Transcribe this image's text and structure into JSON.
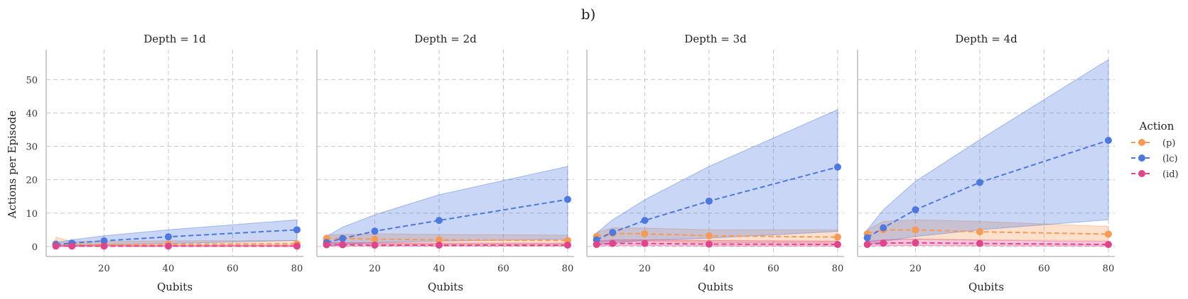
{
  "chart_data": {
    "type": "line",
    "title": "b)",
    "xlabel": "Qubits",
    "ylabel": "Actions per Episode",
    "xlim": [
      2,
      82
    ],
    "ylim": [
      -3,
      59
    ],
    "xticks": [
      20,
      40,
      60,
      80
    ],
    "yticks": [
      0,
      10,
      20,
      30,
      40,
      50
    ],
    "grid": true,
    "legend": {
      "title": "Action",
      "position": "right",
      "entries": [
        {
          "label": "(p)",
          "color": "#f79a55"
        },
        {
          "label": "(lc)",
          "color": "#4c78e0"
        },
        {
          "label": "(id)",
          "color": "#e0458c"
        }
      ]
    },
    "panels": [
      {
        "title": "Depth = 1d",
        "x": [
          5,
          10,
          20,
          40,
          80
        ],
        "series": [
          {
            "name": "(p)",
            "color": "#f79a55",
            "values": [
              0.8,
              0.6,
              0.6,
              0.7,
              0.8
            ],
            "lower": [
              0.2,
              0.1,
              0.2,
              0.1,
              0.1
            ],
            "upper": [
              2.8,
              1.5,
              1.5,
              1.7,
              1.8
            ]
          },
          {
            "name": "(lc)",
            "color": "#4c78e0",
            "values": [
              0.6,
              1.0,
              1.7,
              2.9,
              5.0
            ],
            "lower": [
              0.1,
              0.2,
              0.5,
              0.9,
              1.8
            ],
            "upper": [
              1.2,
              2.0,
              3.2,
              5.0,
              8.0
            ]
          },
          {
            "name": "(id)",
            "color": "#e0458c",
            "values": [
              0.1,
              0.1,
              0.1,
              0.1,
              0.1
            ],
            "lower": [
              0.0,
              0.0,
              0.0,
              0.0,
              0.0
            ],
            "upper": [
              0.4,
              0.4,
              0.4,
              0.4,
              0.4
            ]
          }
        ]
      },
      {
        "title": "Depth = 2d",
        "x": [
          5,
          10,
          20,
          40,
          80
        ],
        "series": [
          {
            "name": "(p)",
            "color": "#f79a55",
            "values": [
              2.4,
              2.4,
              2.2,
              2.0,
              1.8
            ],
            "lower": [
              0.8,
              0.9,
              0.8,
              0.6,
              0.5
            ],
            "upper": [
              3.5,
              3.6,
              3.8,
              3.6,
              3.4
            ]
          },
          {
            "name": "(lc)",
            "color": "#4c78e0",
            "values": [
              1.2,
              2.4,
              4.6,
              7.8,
              14.1
            ],
            "lower": [
              0.2,
              0.5,
              1.2,
              1.6,
              2.2
            ],
            "upper": [
              3.0,
              5.8,
              9.5,
              15.5,
              24.0
            ]
          },
          {
            "name": "(id)",
            "color": "#e0458c",
            "values": [
              0.5,
              0.5,
              0.4,
              0.4,
              0.4
            ],
            "lower": [
              0.1,
              0.1,
              0.1,
              0.1,
              0.1
            ],
            "upper": [
              1.2,
              1.2,
              1.1,
              1.0,
              1.0
            ]
          }
        ]
      },
      {
        "title": "Depth = 3d",
        "x": [
          5,
          10,
          20,
          40,
          80
        ],
        "series": [
          {
            "name": "(p)",
            "color": "#f79a55",
            "values": [
              3.0,
              3.9,
              3.8,
              3.2,
              2.8
            ],
            "lower": [
              1.2,
              1.6,
              1.6,
              1.2,
              1.0
            ],
            "upper": [
              4.2,
              5.6,
              5.5,
              5.0,
              5.0
            ]
          },
          {
            "name": "(lc)",
            "color": "#4c78e0",
            "values": [
              2.0,
              4.2,
              7.8,
              13.6,
              23.8
            ],
            "lower": [
              0.5,
              1.0,
              1.8,
              2.5,
              4.5
            ],
            "upper": [
              4.0,
              8.0,
              14.0,
              24.0,
              41.0
            ]
          },
          {
            "name": "(id)",
            "color": "#e0458c",
            "values": [
              0.6,
              0.9,
              0.9,
              0.7,
              0.6
            ],
            "lower": [
              0.1,
              0.2,
              0.2,
              0.1,
              0.1
            ],
            "upper": [
              1.6,
              2.0,
              2.0,
              1.8,
              1.6
            ]
          }
        ]
      },
      {
        "title": "Depth = 4d",
        "x": [
          5,
          10,
          20,
          40,
          80
        ],
        "series": [
          {
            "name": "(p)",
            "color": "#f79a55",
            "values": [
              3.8,
              5.0,
              5.0,
              4.4,
              3.7
            ],
            "lower": [
              1.2,
              2.0,
              2.2,
              2.0,
              1.8
            ],
            "upper": [
              5.0,
              7.5,
              8.0,
              7.5,
              6.0
            ]
          },
          {
            "name": "(lc)",
            "color": "#4c78e0",
            "values": [
              2.6,
              5.6,
              11.0,
              19.2,
              31.8
            ],
            "lower": [
              0.5,
              1.5,
              3.0,
              5.0,
              8.0
            ],
            "upper": [
              5.0,
              11.0,
              19.5,
              32.0,
              56.0
            ]
          },
          {
            "name": "(id)",
            "color": "#e0458c",
            "values": [
              0.6,
              1.0,
              1.1,
              0.9,
              0.6
            ],
            "lower": [
              0.1,
              0.2,
              0.3,
              0.2,
              0.1
            ],
            "upper": [
              1.5,
              2.0,
              2.2,
              1.9,
              1.5
            ]
          }
        ]
      }
    ]
  }
}
